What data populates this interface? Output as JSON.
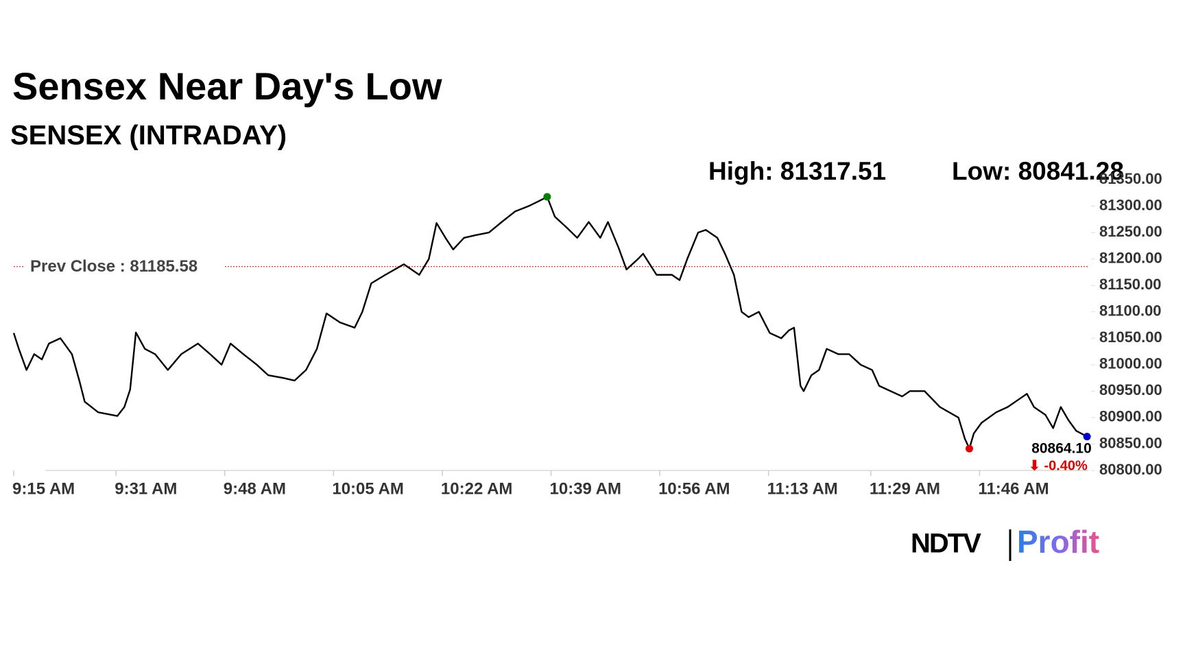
{
  "chart_data": {
    "type": "line",
    "title": "Sensex Near Day's Low",
    "subtitle": "SENSEX (INTRADAY)",
    "high_label": "High: 81317.51",
    "low_label": "Low: 80841.28",
    "x": [
      555,
      555.8,
      557,
      558.2,
      559.4,
      560.5,
      562.3,
      564.1,
      565.3,
      566.1,
      568.2,
      571.2,
      572.3,
      573.2,
      574.1,
      575.5,
      577.1,
      579.1,
      581.2,
      583.8,
      585.7,
      587.5,
      588.9,
      590.9,
      593,
      594.8,
      597.1,
      598.9,
      600.7,
      602.4,
      603.9,
      606,
      608.3,
      609.5,
      610.9,
      613.1,
      616,
      618.4,
      619.9,
      621.1,
      622.5,
      623.7,
      625.4,
      627.2,
      629.3,
      631.3,
      633.4,
      635.5,
      637.2,
      638.4,
      639.6,
      641.4,
      643.1,
      644.9,
      646.7,
      647.9,
      649.6,
      650.8,
      652.6,
      653.4,
      655.5,
      657.9,
      659.1,
      660.3,
      662,
      663.2,
      665,
      666.2,
      667.6,
      668.8,
      669.9,
      671.5,
      673.2,
      675,
      676.2,
      677,
      678,
      678.5,
      679.7,
      680.9,
      682.1,
      683.9,
      685.6,
      687.4,
      689.2,
      690.3,
      692.1,
      693.9,
      695.1,
      697.4,
      699.8,
      702.7,
      703.7,
      704.4,
      705.1,
      706.3,
      708.6,
      710.4,
      712.2,
      713.4,
      714.5,
      716.3,
      717.5,
      718.7,
      719.9,
      721.1,
      722.8
    ],
    "values": [
      81060,
      81030,
      80990,
      81020,
      81010,
      81040,
      81050,
      81020,
      80968,
      80930,
      80910,
      80903,
      80920,
      80953,
      81061,
      81030,
      81020,
      80990,
      81020,
      81040,
      81020,
      81000,
      81040,
      81020,
      81000,
      80980,
      80975,
      80970,
      80990,
      81030,
      81097,
      81080,
      81070,
      81100,
      81154,
      81170,
      81190,
      81170,
      81200,
      81268,
      81240,
      81218,
      81240,
      81245,
      81250,
      81270,
      81290,
      81300,
      81310,
      81317.51,
      81280,
      81260,
      81240,
      81270,
      81240,
      81270,
      81220,
      81180,
      81200,
      81210,
      81170,
      81170,
      81160,
      81200,
      81250,
      81255,
      81240,
      81210,
      81170,
      81100,
      81090,
      81100,
      81060,
      81050,
      81065,
      81070,
      80960,
      80950,
      80980,
      80990,
      81030,
      81020,
      81020,
      81000,
      80990,
      80960,
      80950,
      80940,
      80950,
      80950,
      80920,
      80900,
      80860,
      80841.28,
      80870,
      80890,
      80910,
      80920,
      80935,
      80945,
      80920,
      80905,
      80880,
      80920,
      80895,
      80875,
      80864.1
    ],
    "color": "#000000",
    "xlim": [
      555,
      723
    ],
    "ylim": [
      80800,
      81350
    ],
    "xticks": [
      {
        "value": 555,
        "label": "9:15 AM"
      },
      {
        "value": 571,
        "label": "9:31 AM"
      },
      {
        "value": 588,
        "label": "9:48 AM"
      },
      {
        "value": 605,
        "label": "10:05 AM"
      },
      {
        "value": 622,
        "label": "10:22 AM"
      },
      {
        "value": 639,
        "label": "10:39 AM"
      },
      {
        "value": 656,
        "label": "10:56 AM"
      },
      {
        "value": 673,
        "label": "11:13 AM"
      },
      {
        "value": 689,
        "label": "11:29 AM"
      },
      {
        "value": 706,
        "label": "11:46 AM"
      }
    ],
    "yticks": [
      {
        "value": 80800,
        "label": "80800.00"
      },
      {
        "value": 80850,
        "label": "80850.00"
      },
      {
        "value": 80900,
        "label": "80900.00"
      },
      {
        "value": 80950,
        "label": "80950.00"
      },
      {
        "value": 81000,
        "label": "81000.00"
      },
      {
        "value": 81050,
        "label": "81050.00"
      },
      {
        "value": 81100,
        "label": "81100.00"
      },
      {
        "value": 81150,
        "label": "81150.00"
      },
      {
        "value": 81200,
        "label": "81200.00"
      },
      {
        "value": 81250,
        "label": "81250.00"
      },
      {
        "value": 81300,
        "label": "81300.00"
      },
      {
        "value": 81350,
        "label": "81350.00"
      }
    ],
    "reference_line": {
      "value": 81185.58,
      "label": "Prev Close : 81185.58",
      "color": "#c0392b"
    },
    "high_color": "#008000",
    "low_color": "#e00000",
    "last_color": "#0000cc",
    "last_label": "80864.10",
    "change_label": "⬇ -0.40%",
    "change_color": "#e00000"
  },
  "logo": {
    "brand": "NDTV",
    "product": "Profit"
  }
}
